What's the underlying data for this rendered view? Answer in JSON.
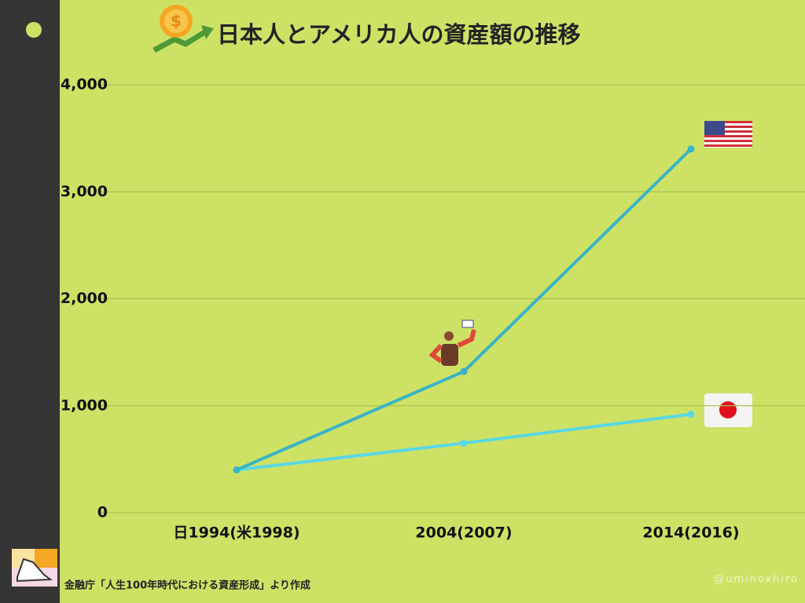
{
  "chart_data": {
    "type": "line",
    "title": "日本人とアメリカ人の資産額の推移",
    "source": "金融庁「人生100年時代における資産形成」より作成",
    "credit": "@uminoxhiro",
    "categories": [
      "日1994(米1998)",
      "2004(2007)",
      "2014(2016)"
    ],
    "series": [
      {
        "color": "#3ab3c6",
        "values": [
          400,
          1320,
          3400
        ]
      },
      {
        "color": "#5ad8e6",
        "values": [
          400,
          650,
          920
        ]
      }
    ],
    "ylim": [
      0,
      4000
    ],
    "yticks": [
      0,
      {
        "value": 1000,
        "label": "1,000"
      },
      {
        "value": 2000,
        "label": "2,000"
      },
      {
        "value": 3000,
        "label": "3,000"
      },
      {
        "value": 4000,
        "label": "4,000"
      }
    ],
    "grid": true
  }
}
